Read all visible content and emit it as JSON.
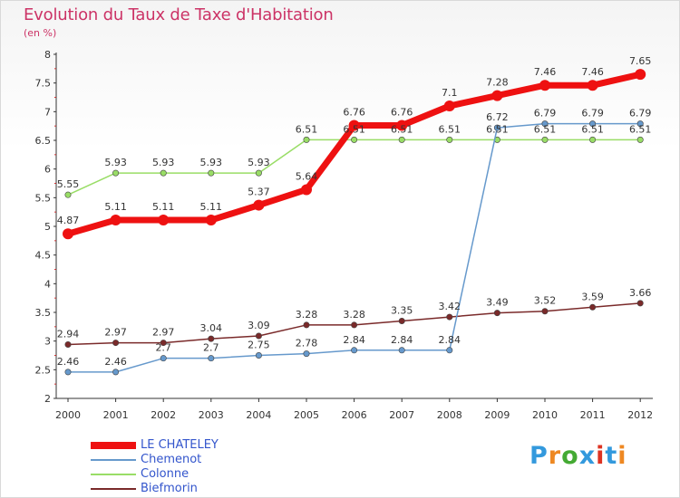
{
  "title": "Evolution du Taux de Taxe d'Habitation",
  "subtitle": "(en %)",
  "logo": {
    "text": "Proxiti",
    "colors": [
      "#3399dd",
      "#ee8822",
      "#44aa33",
      "#3399dd",
      "#dd3322",
      "#3399dd",
      "#ee8822"
    ]
  },
  "chart_data": {
    "type": "line",
    "x": [
      2000,
      2001,
      2002,
      2003,
      2004,
      2005,
      2006,
      2007,
      2008,
      2009,
      2010,
      2011,
      2012
    ],
    "ylim": [
      2,
      8
    ],
    "yticks": [
      "2",
      "2.5",
      "3",
      "3.5",
      "4",
      "4.5",
      "5",
      "5.5",
      "6",
      "6.5",
      "7",
      "7.5",
      "8"
    ],
    "grid": false,
    "legend_position": "bottom-left",
    "series": [
      {
        "name": "LE CHATELEY",
        "color": "#ee1111",
        "values": [
          4.87,
          5.11,
          5.11,
          5.11,
          5.37,
          5.64,
          6.76,
          6.76,
          7.1,
          7.28,
          7.46,
          7.46,
          7.65
        ],
        "labels": [
          "4.87",
          "5.11",
          "5.11",
          "5.11",
          "5.37",
          "5.64",
          "6.76",
          "6.76",
          "7.1",
          "7.28",
          "7.46",
          "7.46",
          "7.65"
        ]
      },
      {
        "name": "Chemenot",
        "color": "#6699cc",
        "values": [
          2.46,
          2.46,
          2.7,
          2.7,
          2.75,
          2.78,
          2.84,
          2.84,
          2.84,
          6.72,
          6.79,
          6.79,
          6.79
        ],
        "labels": [
          "2.46",
          "2.46",
          "2.7",
          "2.7",
          "2.75",
          "2.78",
          "2.84",
          "2.84",
          "2.84",
          "6.72",
          "6.79",
          "6.79",
          "6.79"
        ]
      },
      {
        "name": "Colonne",
        "color": "#99dd66",
        "values": [
          5.55,
          5.93,
          5.93,
          5.93,
          5.93,
          6.51,
          6.51,
          6.51,
          6.51,
          6.51,
          6.51,
          6.51,
          6.51
        ],
        "labels": [
          "5.55",
          "5.93",
          "5.93",
          "5.93",
          "5.93",
          "6.51",
          "6.51",
          "6.51",
          "6.51",
          "6.51",
          "6.51",
          "6.51",
          "6.51"
        ]
      },
      {
        "name": "Biefmorin",
        "color": "#7a2a2a",
        "values": [
          2.94,
          2.97,
          2.97,
          3.04,
          3.09,
          3.28,
          3.28,
          3.35,
          3.42,
          3.49,
          3.52,
          3.59,
          3.66
        ],
        "labels": [
          "2.94",
          "2.97",
          "2.97",
          "3.04",
          "3.09",
          "3.28",
          "3.28",
          "3.35",
          "3.42",
          "3.49",
          "3.52",
          "3.59",
          "3.66"
        ]
      }
    ]
  }
}
